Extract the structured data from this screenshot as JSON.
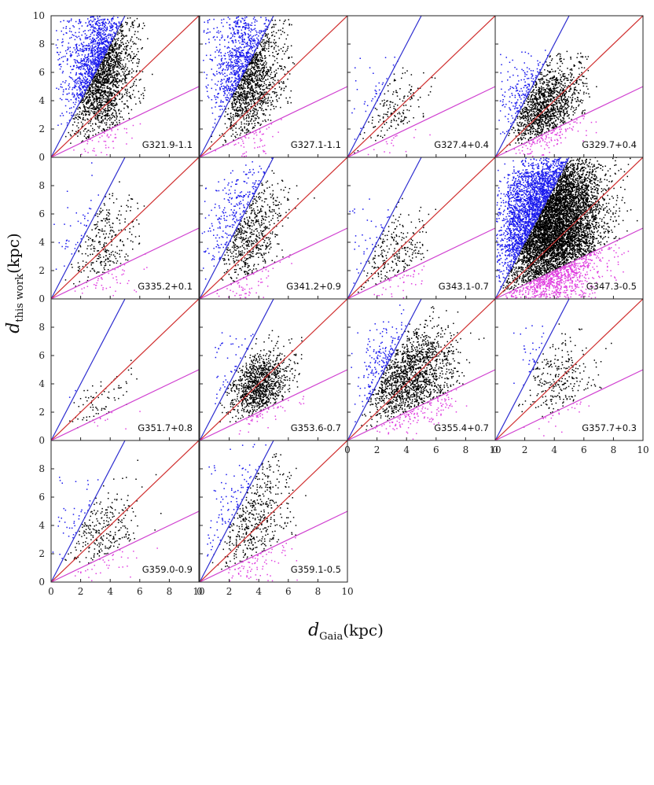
{
  "figure": {
    "xlabel_main": "d",
    "xlabel_sub": "Gaia",
    "xlabel_unit": "(kpc)",
    "ylabel_main": "d",
    "ylabel_sub": "this work",
    "ylabel_unit": "(kpc)"
  },
  "chart_data": {
    "type": "scatter",
    "layout": "4x4 grid of panels (14 used)",
    "xlim": [
      0,
      10
    ],
    "ylim": [
      0,
      10
    ],
    "x_ticks": [
      0,
      2,
      4,
      6,
      8,
      10
    ],
    "y_ticks": [
      0,
      2,
      4,
      6,
      8,
      10
    ],
    "x_tick_labels": [
      "0",
      "2",
      "4",
      "6",
      "8",
      "10"
    ],
    "y_tick_labels": [
      "0",
      "2",
      "4",
      "6",
      "8",
      "10"
    ],
    "reference_lines": [
      {
        "name": "upper boundary",
        "slope": 2.0,
        "color": "#2c2cd0"
      },
      {
        "name": "one-to-one",
        "slope": 1.0,
        "color": "#d03030"
      },
      {
        "name": "lower boundary",
        "slope": 0.5,
        "color": "#d040d0"
      }
    ],
    "point_colors": {
      "inside": "#000000",
      "above": "#1a1aee",
      "below": "#e040e0"
    },
    "panels": [
      {
        "name": "G321.9-1.1",
        "density": 2600,
        "cx": 3.3,
        "cy": 5.8,
        "sx": 1.0,
        "sy": 2.2
      },
      {
        "name": "G327.1-1.1",
        "density": 2000,
        "cx": 3.2,
        "cy": 5.8,
        "sx": 1.0,
        "sy": 2.3
      },
      {
        "name": "G327.4+0.4",
        "density": 220,
        "cx": 2.8,
        "cy": 3.3,
        "sx": 1.1,
        "sy": 1.2
      },
      {
        "name": "G329.7+0.4",
        "density": 1600,
        "cx": 3.3,
        "cy": 3.5,
        "sx": 1.1,
        "sy": 1.3
      },
      {
        "name": "G335.2+0.1",
        "density": 380,
        "cx": 3.5,
        "cy": 3.8,
        "sx": 1.2,
        "sy": 1.8
      },
      {
        "name": "G341.2+0.9",
        "density": 900,
        "cx": 3.2,
        "cy": 4.5,
        "sx": 1.2,
        "sy": 2.2
      },
      {
        "name": "G343.1-0.7",
        "density": 320,
        "cx": 3.0,
        "cy": 3.0,
        "sx": 1.1,
        "sy": 1.3
      },
      {
        "name": "G347.3-0.5",
        "density": 9000,
        "cx": 3.8,
        "cy": 5.0,
        "sx": 1.7,
        "sy": 2.8
      },
      {
        "name": "G351.7+0.8",
        "density": 90,
        "cx": 3.2,
        "cy": 2.8,
        "sx": 1.0,
        "sy": 0.9
      },
      {
        "name": "G353.6-0.7",
        "density": 1200,
        "cx": 4.0,
        "cy": 3.9,
        "sx": 0.9,
        "sy": 1.0
      },
      {
        "name": "G355.4+0.7",
        "density": 1800,
        "cx": 4.2,
        "cy": 4.4,
        "sx": 1.4,
        "sy": 1.6
      },
      {
        "name": "G357.7+0.3",
        "density": 320,
        "cx": 4.2,
        "cy": 4.2,
        "sx": 1.1,
        "sy": 1.5
      },
      {
        "name": "G359.0-0.9",
        "density": 340,
        "cx": 3.4,
        "cy": 3.5,
        "sx": 1.4,
        "sy": 1.5
      },
      {
        "name": "G359.1-0.5",
        "density": 650,
        "cx": 3.5,
        "cy": 4.3,
        "sx": 1.3,
        "sy": 2.2
      }
    ]
  }
}
